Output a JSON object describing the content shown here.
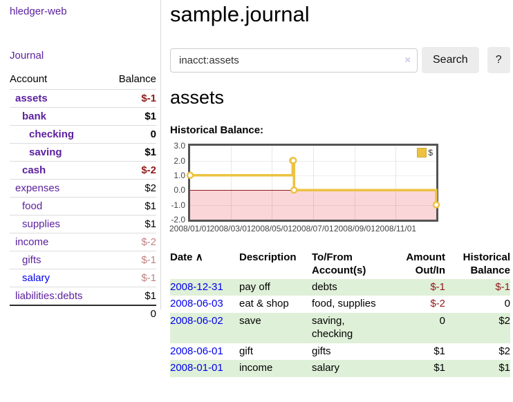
{
  "app": {
    "brand": "hledger-web",
    "nav_journal": "Journal"
  },
  "colors": {
    "link_purple": "#5a1f9e",
    "link_blue": "#0000ee",
    "negative_strong": "#8f1a1a",
    "negative_faint": "#c08181",
    "row_green": "#dff0d8",
    "chart_series": "#EDC240"
  },
  "sidebar": {
    "header": {
      "account": "Account",
      "balance": "Balance"
    },
    "accounts": [
      {
        "name": "assets",
        "level": 1,
        "balance": "$-1",
        "bold": true,
        "neg": "strong"
      },
      {
        "name": "bank",
        "level": 2,
        "balance": "$1",
        "bold": true,
        "neg": ""
      },
      {
        "name": "checking",
        "level": 3,
        "balance": "0",
        "bold": true,
        "neg": ""
      },
      {
        "name": "saving",
        "level": 3,
        "balance": "$1",
        "bold": true,
        "neg": ""
      },
      {
        "name": "cash",
        "level": 2,
        "balance": "$-2",
        "bold": true,
        "neg": "strong"
      },
      {
        "name": "expenses",
        "level": 1,
        "balance": "$2",
        "bold": false,
        "neg": ""
      },
      {
        "name": "food",
        "level": 2,
        "balance": "$1",
        "bold": false,
        "neg": ""
      },
      {
        "name": "supplies",
        "level": 2,
        "balance": "$1",
        "bold": false,
        "neg": ""
      },
      {
        "name": "income",
        "level": 1,
        "balance": "$-2",
        "bold": false,
        "neg": "faint"
      },
      {
        "name": "gifts",
        "level": 2,
        "balance": "$-1",
        "bold": false,
        "neg": "faint"
      },
      {
        "name": "salary",
        "level": 2,
        "balance": "$-1",
        "bold": false,
        "neg": "faint",
        "blue": true
      },
      {
        "name": "liabilities:debts",
        "level": 1,
        "balance": "$1",
        "bold": false,
        "neg": ""
      }
    ],
    "total": "0"
  },
  "header": {
    "title": "sample.journal"
  },
  "search": {
    "value": "inacct:assets",
    "clear_icon": "×",
    "button_label": "Search",
    "help_label": "?"
  },
  "account_page": {
    "heading": "assets",
    "chart_label": "Historical Balance:"
  },
  "chart_data": {
    "type": "line",
    "title": "Historical Balance:",
    "style": "step-after with open circle markers",
    "series": [
      {
        "name": "$",
        "color": "#EDC240",
        "points": [
          [
            "2008-01-01",
            1
          ],
          [
            "2008-06-01",
            2
          ],
          [
            "2008-06-02",
            2
          ],
          [
            "2008-06-03",
            0
          ],
          [
            "2008-12-31",
            -1
          ]
        ]
      }
    ],
    "x_range": [
      "2008-01-01",
      "2008-12-31"
    ],
    "ylim": [
      -2,
      3
    ],
    "y_ticks": [
      3.0,
      2.0,
      1.0,
      0.0,
      -1.0,
      -2.0
    ],
    "x_ticks": [
      "2008/01/01",
      "2008/03/01",
      "2008/05/01",
      "2008/07/01",
      "2008/09/01",
      "2008/11/01"
    ],
    "grid": true,
    "legend_position": "top-right",
    "negative_region_color": "#fbd6d8",
    "zero_line_color": "#911515"
  },
  "register": {
    "sort_arrow": "∧",
    "columns": {
      "date": "Date",
      "description": "Description",
      "tofrom_line1": "To/From",
      "tofrom_line2": "Account(s)",
      "amount_line1": "Amount",
      "amount_line2": "Out/In",
      "hist_line1": "Historical",
      "hist_line2": "Balance"
    },
    "rows": [
      {
        "date": "2008-12-31",
        "description": "pay off",
        "accounts": "debts",
        "amount": "$-1",
        "balance": "$-1",
        "amount_neg": true,
        "balance_neg": true,
        "shade": true
      },
      {
        "date": "2008-06-03",
        "description": "eat & shop",
        "accounts": "food, supplies",
        "amount": "$-2",
        "balance": "0",
        "amount_neg": true,
        "balance_neg": false,
        "shade": false
      },
      {
        "date": "2008-06-02",
        "description": "save",
        "accounts": "saving, checking",
        "amount": "0",
        "balance": "$2",
        "amount_neg": false,
        "balance_neg": false,
        "shade": true
      },
      {
        "date": "2008-06-01",
        "description": "gift",
        "accounts": "gifts",
        "amount": "$1",
        "balance": "$2",
        "amount_neg": false,
        "balance_neg": false,
        "shade": false
      },
      {
        "date": "2008-01-01",
        "description": "income",
        "accounts": "salary",
        "amount": "$1",
        "balance": "$1",
        "amount_neg": false,
        "balance_neg": false,
        "shade": true
      }
    ]
  }
}
